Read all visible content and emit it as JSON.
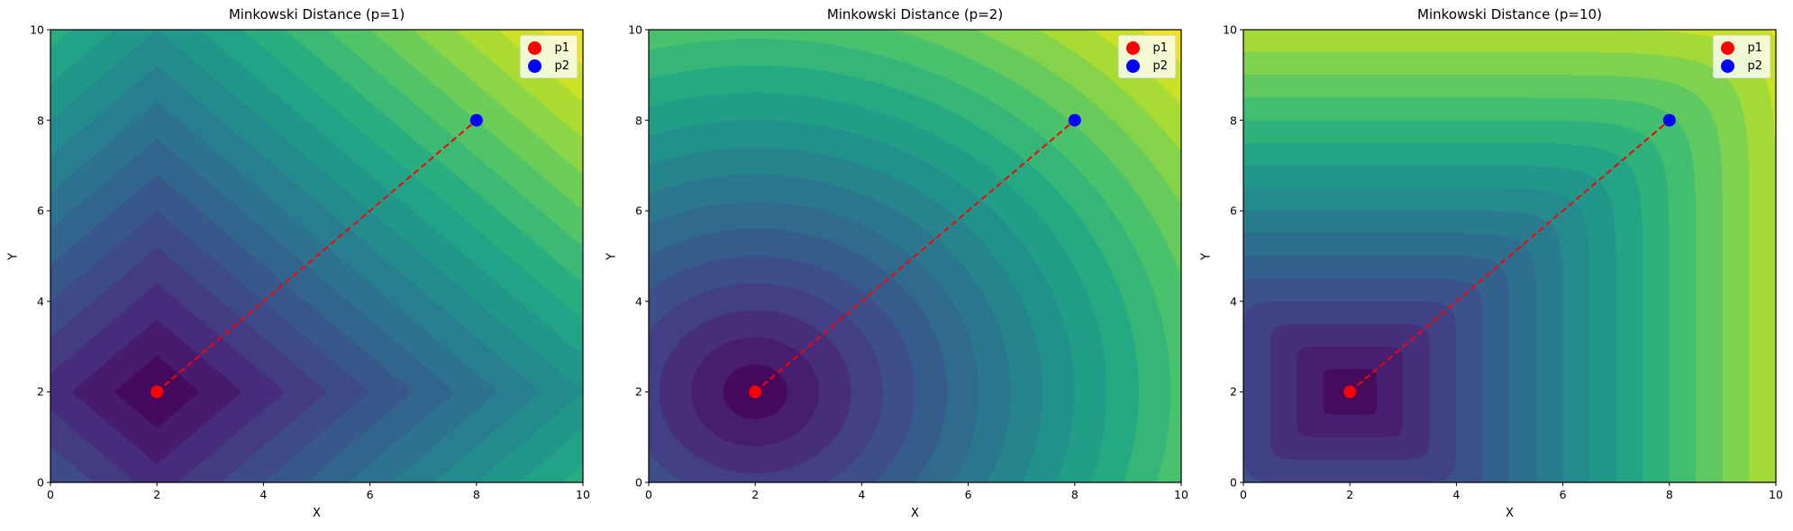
{
  "chart_data": [
    {
      "type": "contour",
      "title": "Minkowski Distance (p=1)",
      "p": 1,
      "xlabel": "X",
      "ylabel": "Y",
      "xlim": [
        0,
        10
      ],
      "ylim": [
        0,
        10
      ],
      "xticks": [
        "0",
        "2",
        "4",
        "6",
        "8",
        "10"
      ],
      "yticks": [
        "0",
        "2",
        "4",
        "6",
        "8",
        "10"
      ],
      "colormap": "viridis",
      "contour_level_step": 0.8,
      "points": [
        {
          "name": "p1",
          "x": 2,
          "y": 2,
          "color": "#ff0000"
        },
        {
          "name": "p2",
          "x": 8,
          "y": 8,
          "color": "#0000ff"
        }
      ],
      "line": {
        "from": [
          2,
          2
        ],
        "to": [
          8,
          8
        ],
        "color": "#ff0000",
        "style": "dashed"
      },
      "legend": {
        "position": "top-right",
        "entries": [
          "p1",
          "p2"
        ]
      }
    },
    {
      "type": "contour",
      "title": "Minkowski Distance (p=2)",
      "p": 2,
      "xlabel": "X",
      "ylabel": "Y",
      "xlim": [
        0,
        10
      ],
      "ylim": [
        0,
        10
      ],
      "xticks": [
        "0",
        "2",
        "4",
        "6",
        "8",
        "10"
      ],
      "yticks": [
        "0",
        "2",
        "4",
        "6",
        "8",
        "10"
      ],
      "colormap": "viridis",
      "contour_level_step": 0.6,
      "points": [
        {
          "name": "p1",
          "x": 2,
          "y": 2,
          "color": "#ff0000"
        },
        {
          "name": "p2",
          "x": 8,
          "y": 8,
          "color": "#0000ff"
        }
      ],
      "line": {
        "from": [
          2,
          2
        ],
        "to": [
          8,
          8
        ],
        "color": "#ff0000",
        "style": "dashed"
      },
      "legend": {
        "position": "top-right",
        "entries": [
          "p1",
          "p2"
        ]
      }
    },
    {
      "type": "contour",
      "title": "Minkowski Distance (p=10)",
      "p": 10,
      "xlabel": "X",
      "ylabel": "Y",
      "xlim": [
        0,
        10
      ],
      "ylim": [
        0,
        10
      ],
      "xticks": [
        "0",
        "2",
        "4",
        "6",
        "8",
        "10"
      ],
      "yticks": [
        "0",
        "2",
        "4",
        "6",
        "8",
        "10"
      ],
      "colormap": "viridis",
      "contour_level_step": 0.5,
      "points": [
        {
          "name": "p1",
          "x": 2,
          "y": 2,
          "color": "#ff0000"
        },
        {
          "name": "p2",
          "x": 8,
          "y": 8,
          "color": "#0000ff"
        }
      ],
      "line": {
        "from": [
          2,
          2
        ],
        "to": [
          8,
          8
        ],
        "color": "#ff0000",
        "style": "dashed"
      },
      "legend": {
        "position": "top-right",
        "entries": [
          "p1",
          "p2"
        ]
      }
    }
  ]
}
